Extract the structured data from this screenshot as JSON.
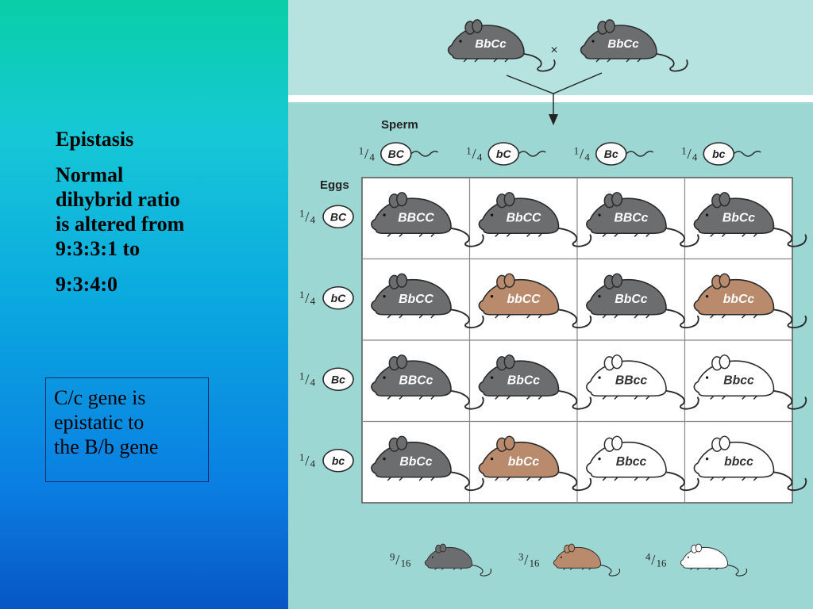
{
  "slide": {
    "heading": "Epistasis",
    "description_lines": [
      "Normal",
      "dihybrid ratio",
      "is altered from",
      "9:3:3:1 to"
    ],
    "new_ratio": "9:3:4:0",
    "note_lines": [
      "C/c gene is",
      "epistatic to",
      "the B/b gene"
    ]
  },
  "diagram": {
    "cross": {
      "parent1": "BbCc",
      "operator": "×",
      "parent2": "BbCc"
    },
    "sperm_label": "Sperm",
    "eggs_label": "Eggs",
    "gamete_fraction": "1/4",
    "sperm_gametes": [
      "BC",
      "bC",
      "Bc",
      "bc"
    ],
    "egg_gametes": [
      "BC",
      "bC",
      "Bc",
      "bc"
    ],
    "grid": [
      [
        {
          "genotype": "BBCC",
          "phenotype": "black"
        },
        {
          "genotype": "BbCC",
          "phenotype": "black"
        },
        {
          "genotype": "BBCc",
          "phenotype": "black"
        },
        {
          "genotype": "BbCc",
          "phenotype": "black"
        }
      ],
      [
        {
          "genotype": "BbCC",
          "phenotype": "black"
        },
        {
          "genotype": "bbCC",
          "phenotype": "brown"
        },
        {
          "genotype": "BbCc",
          "phenotype": "black"
        },
        {
          "genotype": "bbCc",
          "phenotype": "brown"
        }
      ],
      [
        {
          "genotype": "BBCc",
          "phenotype": "black"
        },
        {
          "genotype": "BbCc",
          "phenotype": "black"
        },
        {
          "genotype": "BBcc",
          "phenotype": "white"
        },
        {
          "genotype": "Bbcc",
          "phenotype": "white"
        }
      ],
      [
        {
          "genotype": "BbCc",
          "phenotype": "black"
        },
        {
          "genotype": "bbCc",
          "phenotype": "brown"
        },
        {
          "genotype": "Bbcc",
          "phenotype": "white"
        },
        {
          "genotype": "bbcc",
          "phenotype": "white"
        }
      ]
    ],
    "summary": [
      {
        "fraction": "9/16",
        "phenotype": "black"
      },
      {
        "fraction": "3/16",
        "phenotype": "brown"
      },
      {
        "fraction": "4/16",
        "phenotype": "white"
      }
    ]
  },
  "colors": {
    "black": "#6b6d6f",
    "brown": "#b98a6c",
    "white": "#ffffff",
    "outline": "#2a2a2a",
    "ink": "#222222"
  }
}
